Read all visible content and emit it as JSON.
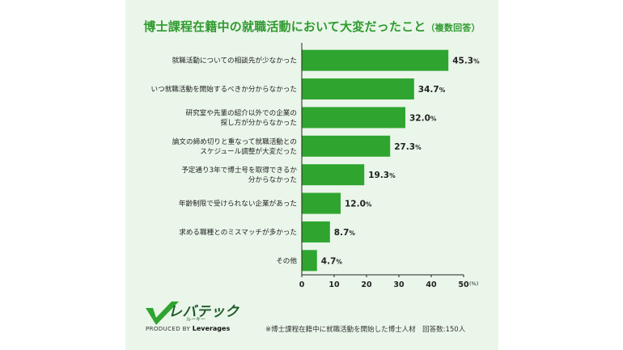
{
  "title_main": "博士課程在籍中の就職活動において大変だったこと",
  "title_sub": "（複数回答）",
  "colors": {
    "bar": "#2fa52f",
    "title": "#2f9a2f",
    "panel": "#eaf6ea",
    "logo": "#1c5a29"
  },
  "chart_data": {
    "type": "bar",
    "orientation": "horizontal",
    "categories": [
      [
        "就職活動についての相談先が少なかった"
      ],
      [
        "いつ就職活動を開始するべきか分からなかった"
      ],
      [
        "研究室や先輩の紹介以外での企業の",
        "探し方が分からなかった"
      ],
      [
        "論文の締め切りと重なって就職活動との",
        "スケジュール調整が大変だった"
      ],
      [
        "予定通り3年で博士号を取得できるか",
        "分からなかった"
      ],
      [
        "年齢制限で受けられない企業があった"
      ],
      [
        "求める職種とのミスマッチが多かった"
      ],
      [
        "その他"
      ]
    ],
    "values": [
      45.3,
      34.7,
      32.0,
      27.3,
      19.3,
      12.0,
      8.7,
      4.7
    ],
    "value_labels": [
      "45.3",
      "34.7",
      "32.0",
      "27.3",
      "19.3",
      "12.0",
      "8.7",
      "4.7"
    ],
    "value_suffix": "%",
    "xlim": [
      0,
      50
    ],
    "xticks": [
      "0",
      "10",
      "20",
      "30",
      "40",
      "50"
    ],
    "xunit": "(%)",
    "grid": false
  },
  "logo": {
    "name": "レバテック",
    "sub": "ルーキー",
    "produced_by": "PRODUCED BY",
    "brand": "Leverages"
  },
  "footnote": "※博士課程在籍中に就職活動を開始した博士人材　回答数:150人"
}
